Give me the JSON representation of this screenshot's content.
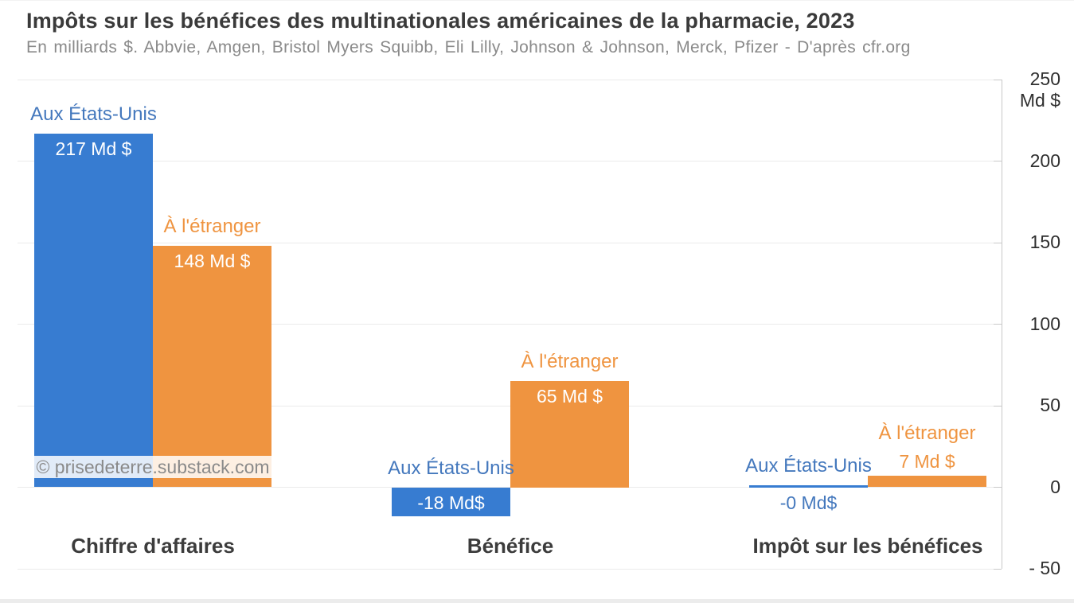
{
  "header": {
    "title": "Impôts sur les bénéfices des multinationales américaines de la pharmacie, 2023",
    "subtitle": "En milliards $. Abbvie, Amgen, Bristol Myers Squibb, Eli Lilly, Johnson & Johnson, Merck, Pfizer - D'après cfr.org"
  },
  "watermark": "© prisedeterre.substack.com",
  "chart_data": {
    "type": "bar",
    "title": "Impôts sur les bénéfices des multinationales américaines de la pharmacie, 2023",
    "subtitle": "En milliards $. Abbvie, Amgen, Bristol Myers Squibb, Eli Lilly, Johnson & Johnson, Merck, Pfizer - D'après cfr.org",
    "source": "cfr.org",
    "categories": [
      "Chiffre d'affaires",
      "Bénéfice",
      "Impôt sur les bénéfices"
    ],
    "series": [
      {
        "name": "Aux États-Unis",
        "color": "#377cd1",
        "label_color": "#4478bd",
        "values": [
          217,
          -18,
          0
        ],
        "value_labels": [
          "217 Md $",
          "-18 Md$",
          "-0 Md$"
        ]
      },
      {
        "name": "À l'étranger",
        "color": "#ef9440",
        "label_color": "#ef9440",
        "values": [
          148,
          65,
          7
        ],
        "value_labels": [
          "148 Md $",
          "65 Md $",
          "7 Md $"
        ]
      }
    ],
    "yaxis": {
      "side": "right",
      "unit": "Md $",
      "ticks": [
        250,
        200,
        150,
        100,
        50,
        0,
        -50
      ],
      "tick_labels": [
        "250",
        "200",
        "150",
        "100",
        "50",
        "0",
        "- 50"
      ],
      "range": [
        -50,
        250
      ],
      "grid": true
    },
    "legend_position": "inline-bar-labels",
    "value_label_inside_color": "#ffffff"
  }
}
